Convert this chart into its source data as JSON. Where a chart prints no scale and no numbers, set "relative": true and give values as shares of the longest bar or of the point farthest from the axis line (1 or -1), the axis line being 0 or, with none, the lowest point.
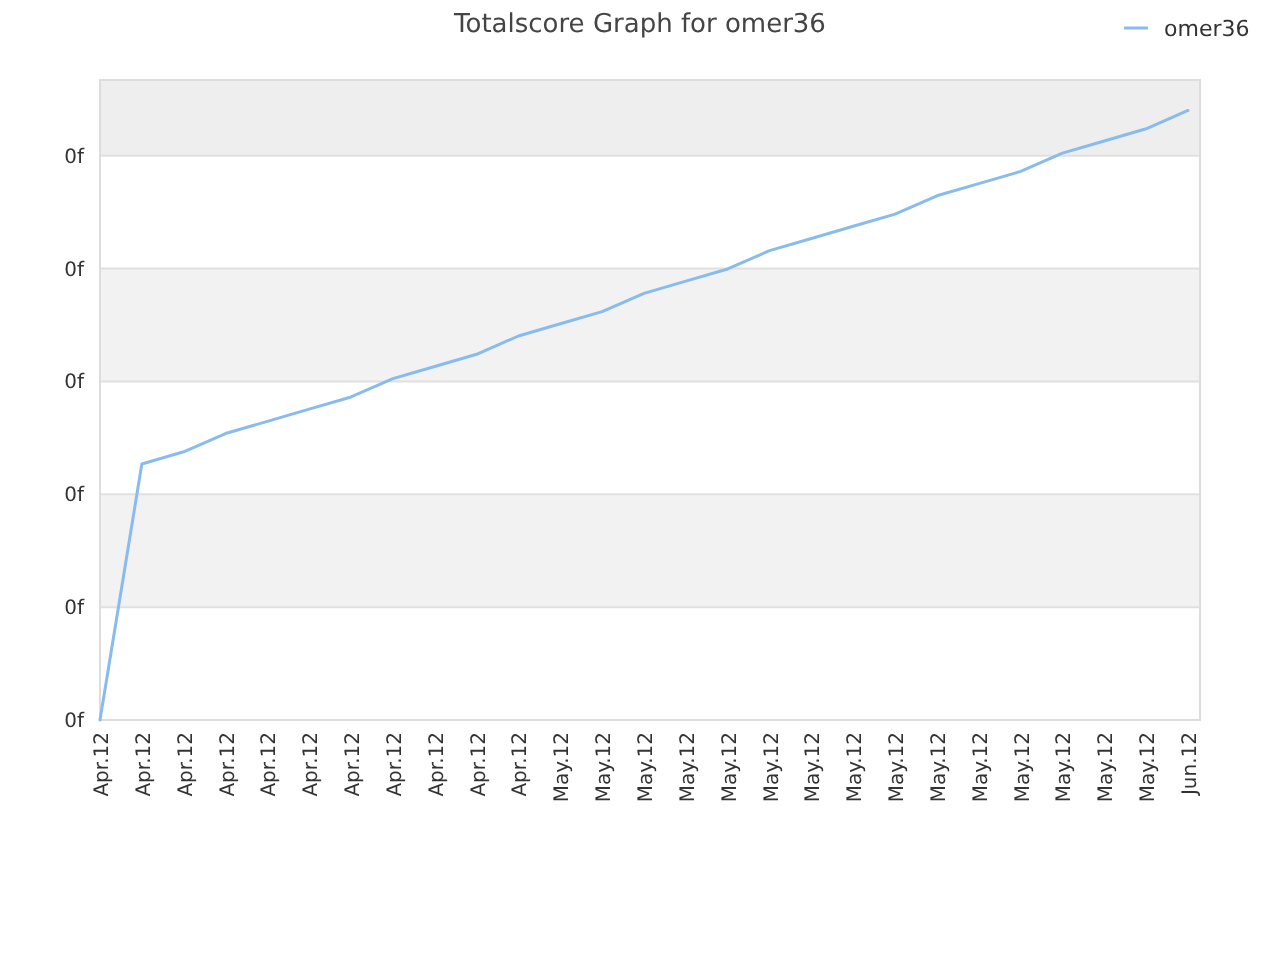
{
  "chart_data": {
    "type": "line",
    "title": "Totalscore Graph for omer36",
    "relative": true,
    "categories": [
      "Apr.12",
      "Apr.12",
      "Apr.12",
      "Apr.12",
      "Apr.12",
      "Apr.12",
      "Apr.12",
      "Apr.12",
      "Apr.12",
      "Apr.12",
      "Apr.12",
      "May.12",
      "May.12",
      "May.12",
      "May.12",
      "May.12",
      "May.12",
      "May.12",
      "May.12",
      "May.12",
      "May.12",
      "May.12",
      "May.12",
      "May.12",
      "May.12",
      "May.12",
      "Jun.12"
    ],
    "series": [
      {
        "name": "omer36",
        "color": "#88bbee",
        "values": [
          0,
          0.42,
          0.44,
          0.47,
          0.49,
          0.51,
          0.53,
          0.56,
          0.58,
          0.6,
          0.63,
          0.65,
          0.67,
          0.7,
          0.72,
          0.74,
          0.77,
          0.79,
          0.81,
          0.83,
          0.86,
          0.88,
          0.9,
          0.93,
          0.95,
          0.97,
          1
        ]
      }
    ],
    "annotations": [
      "0f",
      "0f",
      "0f",
      "0f",
      "0f",
      "0f"
    ],
    "grid": "y",
    "legend": "top right",
    "marker": "none",
    "line_style": "solid"
  }
}
